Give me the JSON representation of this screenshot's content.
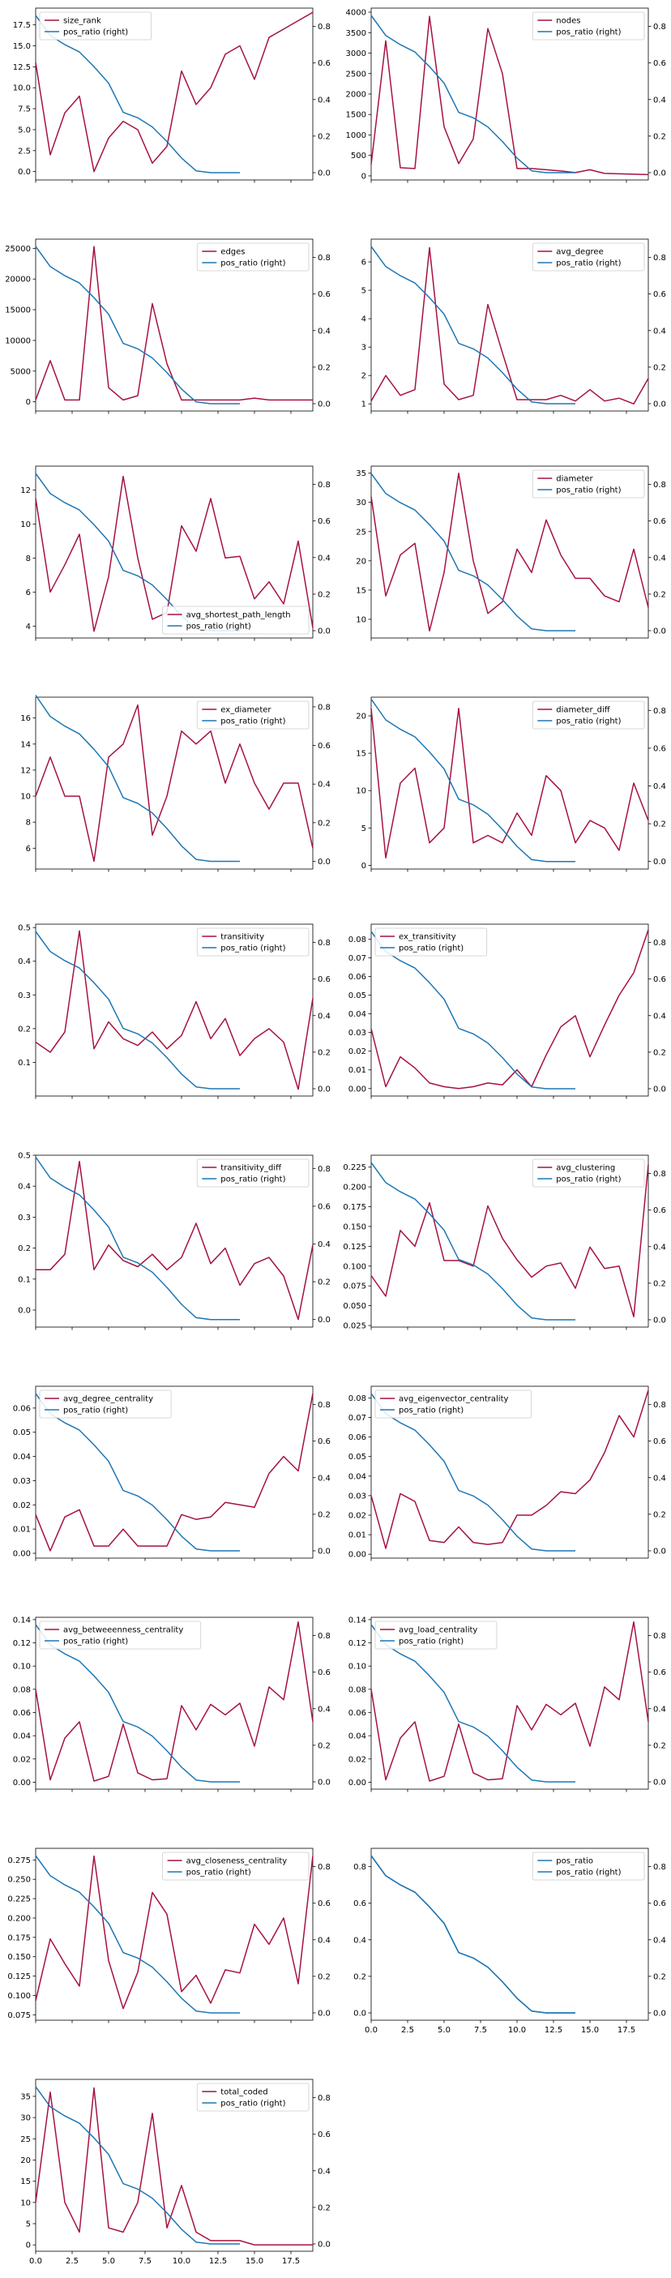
{
  "colors": {
    "primary": "#a6123f",
    "pos_ratio": "#1f77b4"
  },
  "shared": {
    "x": [
      0,
      1,
      2,
      3,
      4,
      5,
      6,
      7,
      8,
      9,
      10,
      11,
      12,
      13,
      14,
      15,
      16,
      17,
      18,
      19
    ],
    "xlim": [
      0,
      19
    ],
    "xticks": [
      0.0,
      2.5,
      5.0,
      7.5,
      10.0,
      12.5,
      15.0,
      17.5
    ],
    "pos_ratio_x": [
      0,
      1,
      2,
      3,
      4,
      5,
      6,
      7,
      8,
      9,
      10,
      11,
      12,
      13,
      14
    ],
    "pos_ratio": [
      0.86,
      0.75,
      0.7,
      0.66,
      0.58,
      0.49,
      0.33,
      0.3,
      0.25,
      0.17,
      0.08,
      0.01,
      0.0,
      0.0,
      0.0
    ],
    "pos_ratio_label": "pos_ratio (right)"
  },
  "chart_data": [
    {
      "type": "line",
      "name": "size_rank",
      "ylim": [
        -1,
        19.5
      ],
      "yticks": [
        "0.0",
        "2.5",
        "5.0",
        "7.5",
        "10.0",
        "12.5",
        "15.0",
        "17.5"
      ],
      "ytick_vals": [
        0,
        2.5,
        5,
        7.5,
        10,
        12.5,
        15,
        17.5
      ],
      "y2lim": [
        -0.04,
        0.9
      ],
      "y2ticks": [
        "0.0",
        "0.2",
        "0.4",
        "0.6",
        "0.8"
      ],
      "y2tick_vals": [
        0,
        0.2,
        0.4,
        0.6,
        0.8
      ],
      "legend": "top-left",
      "values": [
        13,
        2,
        7,
        9,
        0,
        4,
        6,
        5,
        1,
        3,
        12,
        8,
        10,
        14,
        15,
        11,
        16,
        17,
        18,
        19
      ]
    },
    {
      "type": "line",
      "name": "nodes",
      "ylim": [
        -100,
        4100
      ],
      "yticks": [
        "0",
        "500",
        "1000",
        "1500",
        "2000",
        "2500",
        "3000",
        "3500",
        "4000"
      ],
      "ytick_vals": [
        0,
        500,
        1000,
        1500,
        2000,
        2500,
        3000,
        3500,
        4000
      ],
      "y2lim": [
        -0.04,
        0.9
      ],
      "y2ticks": [
        "0.0",
        "0.2",
        "0.4",
        "0.6",
        "0.8"
      ],
      "y2tick_vals": [
        0,
        0.2,
        0.4,
        0.6,
        0.8
      ],
      "legend": "top-right",
      "values": [
        280,
        3300,
        200,
        180,
        3900,
        1200,
        300,
        900,
        3600,
        2500,
        180,
        180,
        150,
        120,
        80,
        150,
        60,
        50,
        40,
        30
      ]
    },
    {
      "type": "line",
      "name": "edges",
      "ylim": [
        -1500,
        26500
      ],
      "yticks": [
        "0",
        "5000",
        "10000",
        "15000",
        "20000",
        "25000"
      ],
      "ytick_vals": [
        0,
        5000,
        10000,
        15000,
        20000,
        25000
      ],
      "y2lim": [
        -0.04,
        0.9
      ],
      "y2ticks": [
        "0.0",
        "0.2",
        "0.4",
        "0.6",
        "0.8"
      ],
      "y2tick_vals": [
        0,
        0.2,
        0.4,
        0.6,
        0.8
      ],
      "legend": "top-right",
      "values": [
        300,
        6700,
        300,
        300,
        25300,
        2300,
        300,
        1000,
        16000,
        6200,
        300,
        300,
        300,
        300,
        300,
        600,
        300,
        300,
        300,
        300
      ]
    },
    {
      "type": "line",
      "name": "avg_degree",
      "ylim": [
        0.75,
        6.8
      ],
      "yticks": [
        "1",
        "2",
        "3",
        "4",
        "5",
        "6"
      ],
      "ytick_vals": [
        1,
        2,
        3,
        4,
        5,
        6
      ],
      "y2lim": [
        -0.04,
        0.9
      ],
      "y2ticks": [
        "0.0",
        "0.2",
        "0.4",
        "0.6",
        "0.8"
      ],
      "y2tick_vals": [
        0,
        0.2,
        0.4,
        0.6,
        0.8
      ],
      "legend": "top-right",
      "values": [
        1.1,
        2.0,
        1.3,
        1.5,
        6.5,
        1.7,
        1.15,
        1.3,
        4.5,
        2.8,
        1.15,
        1.15,
        1.15,
        1.3,
        1.1,
        1.5,
        1.1,
        1.2,
        1.0,
        1.9
      ]
    },
    {
      "type": "line",
      "name": "avg_shortest_path_length",
      "ylim": [
        3.3,
        13.4
      ],
      "yticks": [
        "4",
        "6",
        "8",
        "10",
        "12"
      ],
      "ytick_vals": [
        4,
        6,
        8,
        10,
        12
      ],
      "y2lim": [
        -0.04,
        0.9
      ],
      "y2ticks": [
        "0.0",
        "0.2",
        "0.4",
        "0.6",
        "0.8"
      ],
      "y2tick_vals": [
        0,
        0.2,
        0.4,
        0.6,
        0.8
      ],
      "legend": "bottom-right",
      "values": [
        11.5,
        6.0,
        7.6,
        9.4,
        3.7,
        6.9,
        12.8,
        8.0,
        4.4,
        4.8,
        9.9,
        8.4,
        11.5,
        8.0,
        8.1,
        5.6,
        6.6,
        5.3,
        9.0,
        3.9
      ]
    },
    {
      "type": "line",
      "name": "diameter",
      "ylim": [
        6.8,
        36.2
      ],
      "yticks": [
        "10",
        "15",
        "20",
        "25",
        "30",
        "35"
      ],
      "ytick_vals": [
        10,
        15,
        20,
        25,
        30,
        35
      ],
      "y2lim": [
        -0.04,
        0.9
      ],
      "y2ticks": [
        "0.0",
        "0.2",
        "0.4",
        "0.6",
        "0.8"
      ],
      "y2tick_vals": [
        0,
        0.2,
        0.4,
        0.6,
        0.8
      ],
      "legend": "top-right",
      "values": [
        31,
        14,
        21,
        23,
        8,
        18,
        35,
        20,
        11,
        13,
        22,
        18,
        27,
        21,
        17,
        17,
        14,
        13,
        22,
        12
      ]
    },
    {
      "type": "line",
      "name": "ex_diameter",
      "ylim": [
        4.4,
        17.6
      ],
      "yticks": [
        "6",
        "8",
        "10",
        "12",
        "14",
        "16"
      ],
      "ytick_vals": [
        6,
        8,
        10,
        12,
        14,
        16
      ],
      "y2lim": [
        -0.04,
        0.85
      ],
      "y2ticks": [
        "0.0",
        "0.2",
        "0.4",
        "0.6",
        "0.8"
      ],
      "y2tick_vals": [
        0,
        0.2,
        0.4,
        0.6,
        0.8
      ],
      "legend": "top-right",
      "values": [
        10,
        13,
        10,
        10,
        5,
        13,
        14,
        17,
        7,
        10,
        15,
        14,
        15,
        11,
        14,
        11,
        9,
        11,
        11,
        6
      ]
    },
    {
      "type": "line",
      "name": "diameter_diff",
      "ylim": [
        -0.5,
        22.5
      ],
      "yticks": [
        "0",
        "5",
        "10",
        "15",
        "20"
      ],
      "ytick_vals": [
        0,
        5,
        10,
        15,
        20
      ],
      "y2lim": [
        -0.04,
        0.87
      ],
      "y2ticks": [
        "0.0",
        "0.2",
        "0.4",
        "0.6",
        "0.8"
      ],
      "y2tick_vals": [
        0,
        0.2,
        0.4,
        0.6,
        0.8
      ],
      "legend": "top-right",
      "values": [
        21,
        1,
        11,
        13,
        3,
        5,
        21,
        3,
        4,
        3,
        7,
        4,
        12,
        10,
        3,
        6,
        5,
        2,
        11,
        6
      ]
    },
    {
      "type": "line",
      "name": "transitivity",
      "ylim": [
        0.0,
        0.51
      ],
      "yticks": [
        "0.1",
        "0.2",
        "0.3",
        "0.4",
        "0.5"
      ],
      "ytick_vals": [
        0.1,
        0.2,
        0.3,
        0.4,
        0.5
      ],
      "y2lim": [
        -0.04,
        0.9
      ],
      "y2ticks": [
        "0.0",
        "0.2",
        "0.4",
        "0.6",
        "0.8"
      ],
      "y2tick_vals": [
        0,
        0.2,
        0.4,
        0.6,
        0.8
      ],
      "legend": "top-right",
      "values": [
        0.16,
        0.13,
        0.19,
        0.49,
        0.14,
        0.22,
        0.17,
        0.15,
        0.19,
        0.14,
        0.18,
        0.28,
        0.17,
        0.23,
        0.12,
        0.17,
        0.2,
        0.16,
        0.02,
        0.29
      ]
    },
    {
      "type": "line",
      "name": "ex_transitivity",
      "ylim": [
        -0.004,
        0.088
      ],
      "yticks": [
        "0.00",
        "0.01",
        "0.02",
        "0.03",
        "0.04",
        "0.05",
        "0.06",
        "0.07",
        "0.08"
      ],
      "ytick_vals": [
        0,
        0.01,
        0.02,
        0.03,
        0.04,
        0.05,
        0.06,
        0.07,
        0.08
      ],
      "y2lim": [
        -0.04,
        0.9
      ],
      "y2ticks": [
        "0.0",
        "0.2",
        "0.4",
        "0.6",
        "0.8"
      ],
      "y2tick_vals": [
        0,
        0.2,
        0.4,
        0.6,
        0.8
      ],
      "legend": "top-left",
      "values": [
        0.032,
        0.001,
        0.017,
        0.011,
        0.003,
        0.001,
        0.0,
        0.001,
        0.003,
        0.002,
        0.01,
        0.001,
        0.018,
        0.033,
        0.039,
        0.017,
        0.034,
        0.05,
        0.062,
        0.085
      ]
    },
    {
      "type": "line",
      "name": "transitivity_diff",
      "ylim": [
        -0.055,
        0.5
      ],
      "yticks": [
        "0.0",
        "0.1",
        "0.2",
        "0.3",
        "0.4",
        "0.5"
      ],
      "ytick_vals": [
        0,
        0.1,
        0.2,
        0.3,
        0.4,
        0.5
      ],
      "y2lim": [
        -0.04,
        0.87
      ],
      "y2ticks": [
        "0.0",
        "0.2",
        "0.4",
        "0.6",
        "0.8"
      ],
      "y2tick_vals": [
        0,
        0.2,
        0.4,
        0.6,
        0.8
      ],
      "legend": "top-right",
      "values": [
        0.13,
        0.13,
        0.18,
        0.48,
        0.13,
        0.21,
        0.16,
        0.14,
        0.18,
        0.13,
        0.17,
        0.28,
        0.15,
        0.2,
        0.08,
        0.15,
        0.17,
        0.11,
        -0.03,
        0.21
      ]
    },
    {
      "type": "line",
      "name": "avg_clustering",
      "ylim": [
        0.023,
        0.24
      ],
      "yticks": [
        "0.025",
        "0.050",
        "0.075",
        "0.100",
        "0.125",
        "0.150",
        "0.175",
        "0.200",
        "0.225"
      ],
      "ytick_vals": [
        0.025,
        0.05,
        0.075,
        0.1,
        0.125,
        0.15,
        0.175,
        0.2,
        0.225
      ],
      "y2lim": [
        -0.04,
        0.9
      ],
      "y2ticks": [
        "0.0",
        "0.2",
        "0.4",
        "0.6",
        "0.8"
      ],
      "y2tick_vals": [
        0,
        0.2,
        0.4,
        0.6,
        0.8
      ],
      "legend": "top-right",
      "values": [
        0.088,
        0.062,
        0.145,
        0.125,
        0.18,
        0.107,
        0.107,
        0.1,
        0.176,
        0.135,
        0.108,
        0.086,
        0.1,
        0.104,
        0.072,
        0.124,
        0.097,
        0.1,
        0.036,
        0.228
      ]
    },
    {
      "type": "line",
      "name": "avg_degree_centrality",
      "ylim": [
        -0.002,
        0.069
      ],
      "yticks": [
        "0.00",
        "0.01",
        "0.02",
        "0.03",
        "0.04",
        "0.05",
        "0.06"
      ],
      "ytick_vals": [
        0,
        0.01,
        0.02,
        0.03,
        0.04,
        0.05,
        0.06
      ],
      "y2lim": [
        -0.04,
        0.9
      ],
      "y2ticks": [
        "0.0",
        "0.2",
        "0.4",
        "0.6",
        "0.8"
      ],
      "y2tick_vals": [
        0,
        0.2,
        0.4,
        0.6,
        0.8
      ],
      "legend": "top-left",
      "values": [
        0.016,
        0.001,
        0.015,
        0.018,
        0.003,
        0.003,
        0.01,
        0.003,
        0.003,
        0.003,
        0.016,
        0.014,
        0.015,
        0.021,
        0.02,
        0.019,
        0.033,
        0.04,
        0.034,
        0.066
      ]
    },
    {
      "type": "line",
      "name": "avg_eigenvector_centrality",
      "ylim": [
        -0.002,
        0.086
      ],
      "yticks": [
        "0.00",
        "0.01",
        "0.02",
        "0.03",
        "0.04",
        "0.05",
        "0.06",
        "0.07",
        "0.08"
      ],
      "ytick_vals": [
        0,
        0.01,
        0.02,
        0.03,
        0.04,
        0.05,
        0.06,
        0.07,
        0.08
      ],
      "y2lim": [
        -0.04,
        0.9
      ],
      "y2ticks": [
        "0.0",
        "0.2",
        "0.4",
        "0.6",
        "0.8"
      ],
      "y2tick_vals": [
        0,
        0.2,
        0.4,
        0.6,
        0.8
      ],
      "legend": "top-left",
      "values": [
        0.03,
        0.003,
        0.031,
        0.027,
        0.007,
        0.006,
        0.014,
        0.006,
        0.005,
        0.006,
        0.02,
        0.02,
        0.025,
        0.032,
        0.031,
        0.038,
        0.052,
        0.071,
        0.06,
        0.084
      ]
    },
    {
      "type": "line",
      "name": "avg_betweeenness_centrality",
      "ylim": [
        -0.006,
        0.142
      ],
      "yticks": [
        "0.00",
        "0.02",
        "0.04",
        "0.06",
        "0.08",
        "0.10",
        "0.12",
        "0.14"
      ],
      "ytick_vals": [
        0,
        0.02,
        0.04,
        0.06,
        0.08,
        0.1,
        0.12,
        0.14
      ],
      "y2lim": [
        -0.04,
        0.9
      ],
      "y2ticks": [
        "0.0",
        "0.2",
        "0.4",
        "0.6",
        "0.8"
      ],
      "y2tick_vals": [
        0,
        0.2,
        0.4,
        0.6,
        0.8
      ],
      "legend": "top-left",
      "values": [
        0.08,
        0.002,
        0.038,
        0.052,
        0.001,
        0.005,
        0.05,
        0.008,
        0.002,
        0.003,
        0.066,
        0.045,
        0.067,
        0.058,
        0.068,
        0.031,
        0.082,
        0.071,
        0.138,
        0.052
      ]
    },
    {
      "type": "line",
      "name": "avg_load_centrality",
      "ylim": [
        -0.006,
        0.142
      ],
      "yticks": [
        "0.00",
        "0.02",
        "0.04",
        "0.06",
        "0.08",
        "0.10",
        "0.12",
        "0.14"
      ],
      "ytick_vals": [
        0,
        0.02,
        0.04,
        0.06,
        0.08,
        0.1,
        0.12,
        0.14
      ],
      "y2lim": [
        -0.04,
        0.9
      ],
      "y2ticks": [
        "0.0",
        "0.2",
        "0.4",
        "0.6",
        "0.8"
      ],
      "y2tick_vals": [
        0,
        0.2,
        0.4,
        0.6,
        0.8
      ],
      "legend": "top-left",
      "values": [
        0.08,
        0.002,
        0.038,
        0.052,
        0.001,
        0.005,
        0.05,
        0.008,
        0.002,
        0.003,
        0.066,
        0.045,
        0.067,
        0.058,
        0.068,
        0.031,
        0.082,
        0.071,
        0.138,
        0.052
      ]
    },
    {
      "type": "line",
      "name": "avg_closeness_centrality",
      "ylim": [
        0.068,
        0.29
      ],
      "yticks": [
        "0.075",
        "0.100",
        "0.125",
        "0.150",
        "0.175",
        "0.200",
        "0.225",
        "0.250",
        "0.275"
      ],
      "ytick_vals": [
        0.075,
        0.1,
        0.125,
        0.15,
        0.175,
        0.2,
        0.225,
        0.25,
        0.275
      ],
      "y2lim": [
        -0.04,
        0.9
      ],
      "y2ticks": [
        "0.0",
        "0.2",
        "0.4",
        "0.6",
        "0.8"
      ],
      "y2tick_vals": [
        0,
        0.2,
        0.4,
        0.6,
        0.8
      ],
      "legend": "top-right",
      "values": [
        0.093,
        0.173,
        0.141,
        0.112,
        0.28,
        0.145,
        0.083,
        0.13,
        0.233,
        0.205,
        0.105,
        0.126,
        0.09,
        0.133,
        0.129,
        0.192,
        0.166,
        0.2,
        0.115,
        0.28
      ]
    },
    {
      "type": "line",
      "name": "pos_ratio",
      "ylim": [
        -0.04,
        0.9
      ],
      "yticks": [
        "0.0",
        "0.2",
        "0.4",
        "0.6",
        "0.8"
      ],
      "ytick_vals": [
        0,
        0.2,
        0.4,
        0.6,
        0.8
      ],
      "y2lim": [
        -0.04,
        0.9
      ],
      "y2ticks": [
        "0.0",
        "0.2",
        "0.4",
        "0.6",
        "0.8"
      ],
      "y2tick_vals": [
        0,
        0.2,
        0.4,
        0.6,
        0.8
      ],
      "legend": "top-right",
      "values": [
        0.86,
        0.75,
        0.7,
        0.66,
        0.58,
        0.49,
        0.33,
        0.3,
        0.25,
        0.17,
        0.08,
        0.01,
        0.0,
        0.0,
        0.0
      ],
      "values_x": [
        0,
        1,
        2,
        3,
        4,
        5,
        6,
        7,
        8,
        9,
        10,
        11,
        12,
        13,
        14
      ]
    },
    {
      "type": "line",
      "name": "total_coded",
      "ylim": [
        -1.5,
        39
      ],
      "yticks": [
        "0",
        "5",
        "10",
        "15",
        "20",
        "25",
        "30",
        "35"
      ],
      "ytick_vals": [
        0,
        5,
        10,
        15,
        20,
        25,
        30,
        35
      ],
      "y2lim": [
        -0.04,
        0.9
      ],
      "y2ticks": [
        "0.0",
        "0.2",
        "0.4",
        "0.6",
        "0.8"
      ],
      "y2tick_vals": [
        0,
        0.2,
        0.4,
        0.6,
        0.8
      ],
      "legend": "top-right",
      "values": [
        10,
        36,
        10,
        3,
        37,
        4,
        3,
        10,
        31,
        4,
        14,
        3,
        1,
        1,
        1,
        0,
        0,
        0,
        0,
        0
      ]
    }
  ]
}
